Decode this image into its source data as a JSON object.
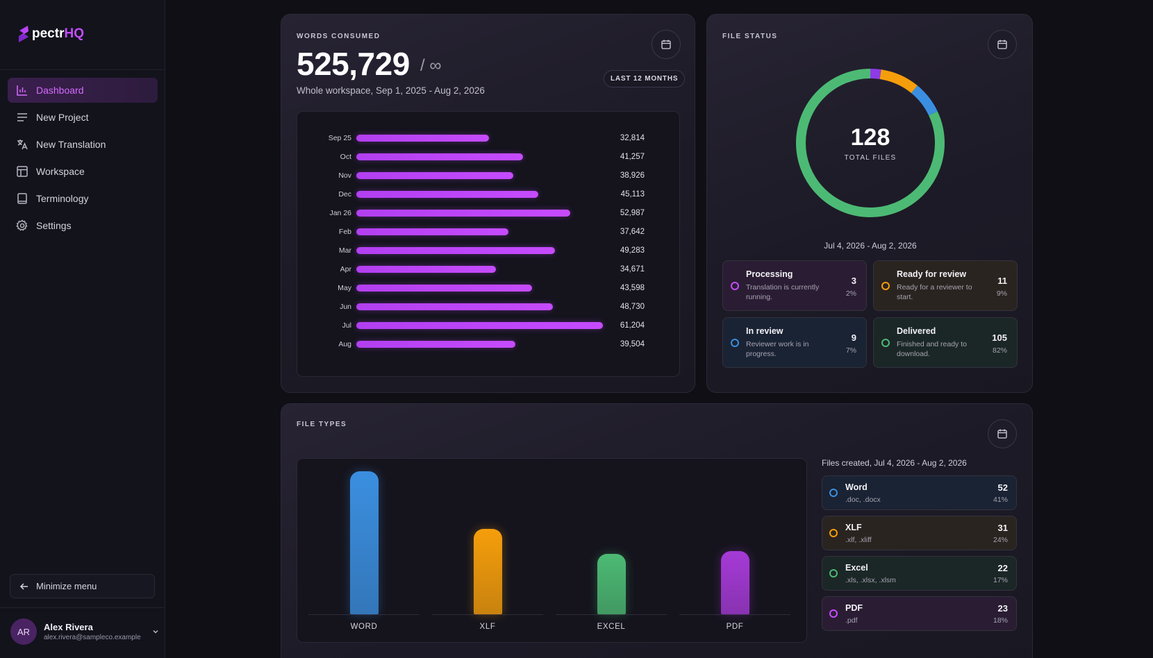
{
  "brand": {
    "logo_letter": "S",
    "name": "pectr",
    "suffix": "HQ"
  },
  "sidebar": {
    "items": [
      {
        "label": "Dashboard",
        "icon": "bar-chart-icon",
        "active": true
      },
      {
        "label": "New Project",
        "icon": "list-icon"
      },
      {
        "label": "New Translation",
        "icon": "translate-icon"
      },
      {
        "label": "Workspace",
        "icon": "layout-icon"
      },
      {
        "label": "Terminology",
        "icon": "book-icon"
      },
      {
        "label": "Settings",
        "icon": "gear-icon"
      }
    ],
    "minimize_label": "Minimize menu",
    "user": {
      "initials": "AR",
      "name": "Alex Rivera",
      "email": "alex.rivera@sampleco.example"
    }
  },
  "words": {
    "label": "WORDS CONSUMED",
    "total": "525,729",
    "separator": "/ ∞",
    "subtitle": "Whole workspace, Sep 1, 2025 - Aug 2, 2026",
    "range_pill": "LAST 12 MONTHS"
  },
  "status": {
    "label": "FILE STATUS",
    "total": "128",
    "total_label": "TOTAL FILES",
    "range": "Jul 4, 2026 - Aug 2, 2026",
    "items": [
      {
        "title": "Processing",
        "desc": "Translation is currently running.",
        "count": "3",
        "pct": "2%",
        "color": "#c94cff"
      },
      {
        "title": "Ready for review",
        "desc": "Ready for a reviewer to start.",
        "count": "11",
        "pct": "9%",
        "color": "#f59e0b"
      },
      {
        "title": "In review",
        "desc": "Reviewer work is in progress.",
        "count": "9",
        "pct": "7%",
        "color": "#3b8fe0"
      },
      {
        "title": "Delivered",
        "desc": "Finished and ready to download.",
        "count": "105",
        "pct": "82%",
        "color": "#4cba74"
      }
    ]
  },
  "types": {
    "label": "FILE TYPES",
    "range": "Files created, Jul 4, 2026 - Aug 2, 2026",
    "items": [
      {
        "title": "Word",
        "ext": ".doc, .docx",
        "count": "52",
        "pct": "41%",
        "color": "#3b8fe0"
      },
      {
        "title": "XLF",
        "ext": ".xlf, .xliff",
        "count": "31",
        "pct": "24%",
        "color": "#f59e0b"
      },
      {
        "title": "Excel",
        "ext": ".xls, .xlsx, .xlsm",
        "count": "22",
        "pct": "17%",
        "color": "#4cba74"
      },
      {
        "title": "PDF",
        "ext": ".pdf",
        "count": "23",
        "pct": "18%",
        "color": "#c94cff"
      }
    ]
  },
  "chart_data": [
    {
      "type": "bar",
      "orientation": "horizontal",
      "categories": [
        "Sep 25",
        "Oct",
        "Nov",
        "Dec",
        "Jan 26",
        "Feb",
        "Mar",
        "Apr",
        "May",
        "Jun",
        "Jul",
        "Aug"
      ],
      "values": [
        32814,
        41257,
        38926,
        45113,
        52987,
        37642,
        49283,
        34671,
        43598,
        48730,
        61204,
        39504
      ],
      "value_labels": [
        "32,814",
        "41,257",
        "38,926",
        "45,113",
        "52,987",
        "37,642",
        "49,283",
        "34,671",
        "43,598",
        "48,730",
        "61,204",
        "39,504"
      ],
      "xlim": [
        0,
        62000
      ],
      "color": "#c44dff",
      "grid": false
    },
    {
      "type": "pie",
      "donut": true,
      "categories": [
        "Processing",
        "Ready for review",
        "In review",
        "Delivered"
      ],
      "values": [
        3,
        11,
        9,
        105
      ],
      "colors": [
        "#8d3be6",
        "#f59e0b",
        "#3b8fe0",
        "#4cba74"
      ]
    },
    {
      "type": "bar",
      "orientation": "vertical",
      "categories": [
        "WORD",
        "XLF",
        "EXCEL",
        "PDF"
      ],
      "values": [
        52,
        31,
        22,
        23
      ],
      "ylim": [
        0,
        52
      ],
      "colors": [
        "#3b8fe0",
        "#f59e0b",
        "#4cba74",
        "#a53ad6"
      ],
      "grid": false
    }
  ]
}
